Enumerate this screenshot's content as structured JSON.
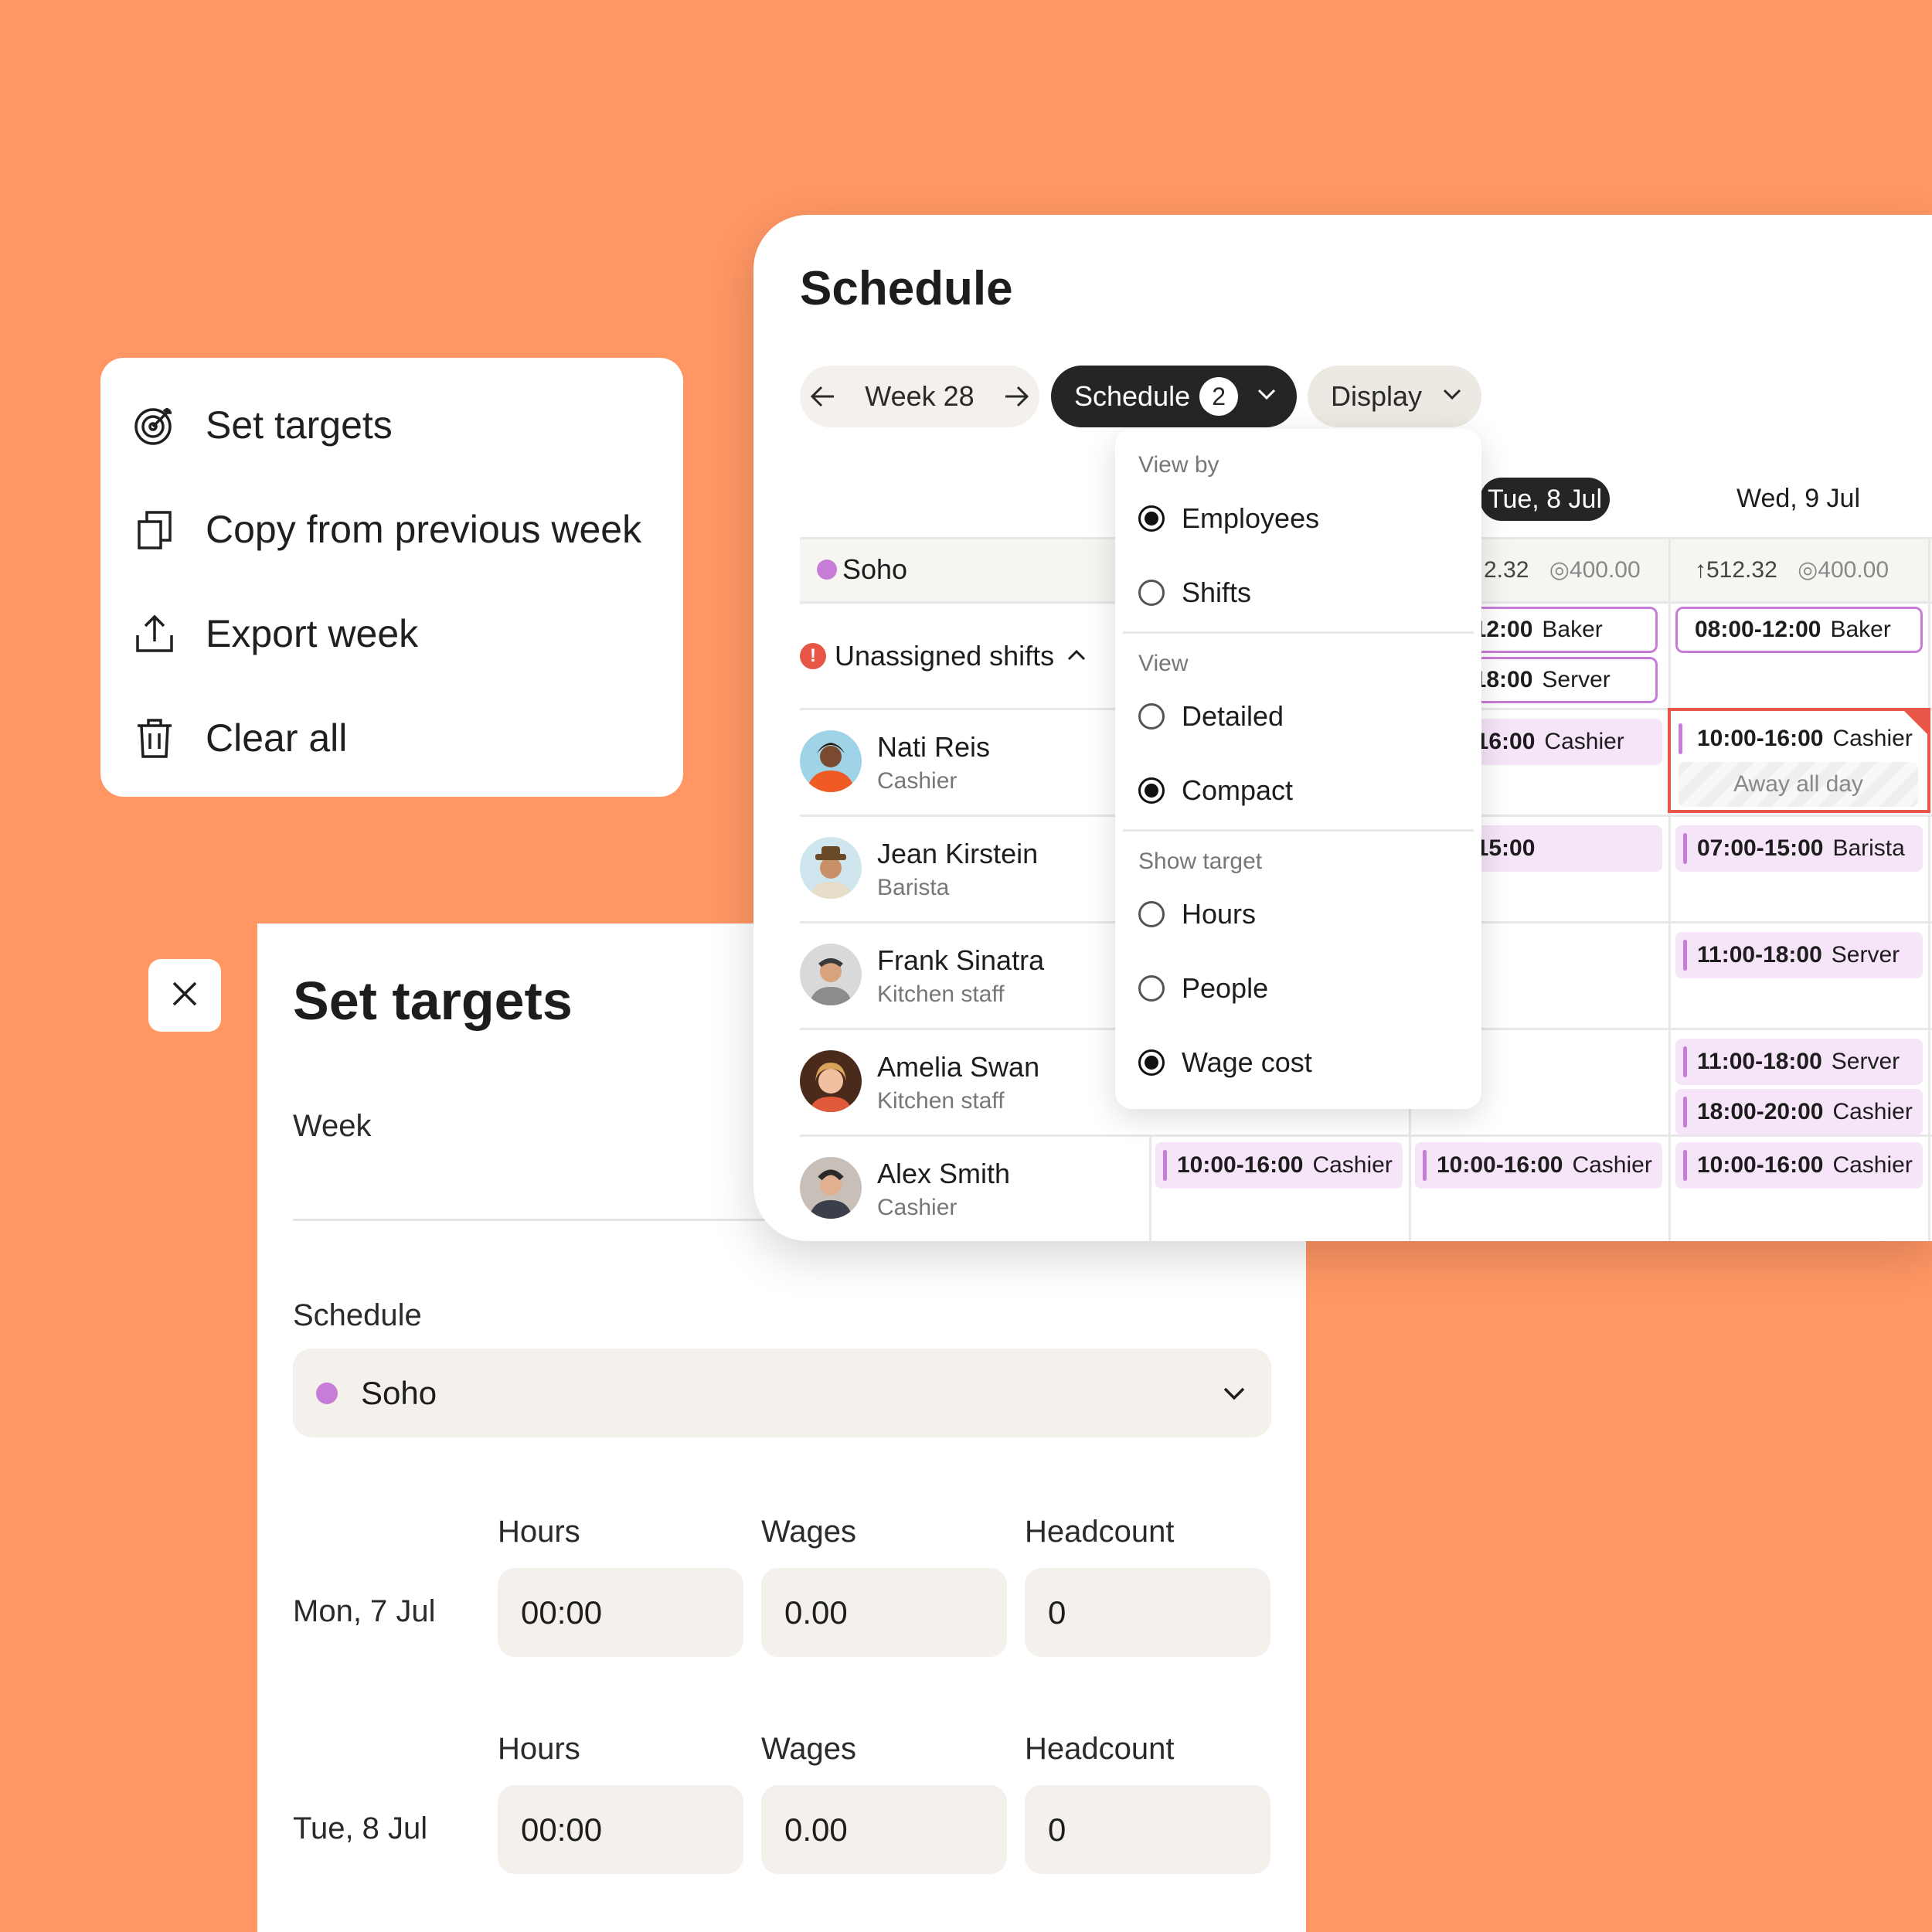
{
  "actions_menu": {
    "items": [
      {
        "label": "Set targets",
        "icon": "target-icon"
      },
      {
        "label": "Copy from previous  week",
        "icon": "copy-icon"
      },
      {
        "label": "Export week",
        "icon": "export-icon"
      },
      {
        "label": "Clear all",
        "icon": "trash-icon"
      }
    ]
  },
  "set_targets": {
    "title": "Set targets",
    "week_label": "Week",
    "schedule_label": "Schedule",
    "schedule_value": "Soho",
    "schedule_color": "#C77DD8",
    "columns": [
      "Hours",
      "Wages",
      "Headcount"
    ],
    "days": [
      {
        "label": "Mon, 7 Jul",
        "hours": "00:00",
        "wages": "0.00",
        "headcount": "0"
      },
      {
        "label": "Tue, 8 Jul",
        "hours": "00:00",
        "wages": "0.00",
        "headcount": "0"
      }
    ]
  },
  "schedule": {
    "title": "Schedule",
    "week": "Week 28",
    "schedule_button": "Schedule",
    "schedule_count": "2",
    "display_button": "Display",
    "day_headers": [
      "Tue, 8 Jul",
      "Wed, 9 Jul"
    ],
    "location": "Soho",
    "location_color": "#C77DD8",
    "stats": {
      "tue_value": "2.32",
      "tue_target": "400.00",
      "wed_value": "512.32",
      "wed_target": "400.00"
    },
    "unassigned_label": "Unassigned shifts",
    "employees": [
      {
        "name": "Nati Reis",
        "role": "Cashier"
      },
      {
        "name": "Jean Kirstein",
        "role": "Barista"
      },
      {
        "name": "Frank Sinatra",
        "role": "Kitchen staff"
      },
      {
        "name": "Amelia Swan",
        "role": "Kitchen staff"
      },
      {
        "name": "Alex Smith",
        "role": "Cashier"
      }
    ],
    "shifts": {
      "tue_unassigned_1": {
        "time": "0-12:00",
        "role": "Baker"
      },
      "wed_unassigned_1": {
        "time": "08:00-12:00",
        "role": "Baker"
      },
      "tue_unassigned_2": {
        "time": "0-18:00",
        "role": "Server"
      },
      "tue_nati": {
        "time": "0-16:00",
        "role": "Cashier"
      },
      "wed_nati": {
        "time": "10:00-16:00",
        "role": "Cashier"
      },
      "wed_nati_away": "Away all day",
      "tue_jean": {
        "time": "0-15:00",
        "role": ""
      },
      "wed_jean": {
        "time": "07:00-15:00",
        "role": "Barista"
      },
      "wed_frank": {
        "time": "11:00-18:00",
        "role": "Server"
      },
      "wed_amelia_1": {
        "time": "11:00-18:00",
        "role": "Server"
      },
      "wed_amelia_2": {
        "time": "18:00-20:00",
        "role": "Cashier"
      },
      "mon_alex": {
        "time": "10:00-16:00",
        "role": "Cashier"
      },
      "tue_alex": {
        "time": "10:00-16:00",
        "role": "Cashier"
      },
      "wed_alex": {
        "time": "10:00-16:00",
        "role": "Cashier"
      }
    }
  },
  "view_dropdown": {
    "sections": [
      {
        "title": "View by",
        "options": [
          {
            "label": "Employees",
            "selected": true
          },
          {
            "label": "Shifts",
            "selected": false
          }
        ]
      },
      {
        "title": "View",
        "options": [
          {
            "label": "Detailed",
            "selected": false
          },
          {
            "label": "Compact",
            "selected": true
          }
        ]
      },
      {
        "title": "Show target",
        "options": [
          {
            "label": "Hours",
            "selected": false
          },
          {
            "label": "People",
            "selected": false
          },
          {
            "label": "Wage cost",
            "selected": true
          }
        ]
      }
    ]
  },
  "colors": {
    "background": "#FF9664",
    "accent": "#C77DD8",
    "warning": "#E85648",
    "dark": "#252525"
  }
}
